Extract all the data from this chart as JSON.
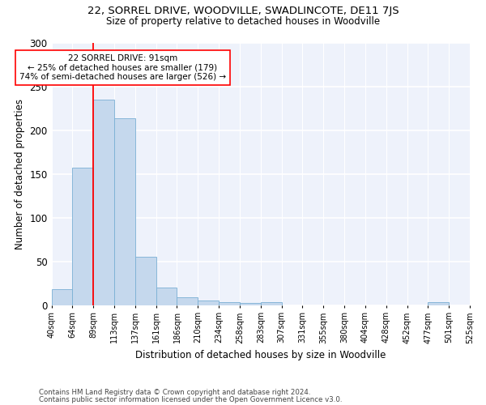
{
  "title1": "22, SORREL DRIVE, WOODVILLE, SWADLINCOTE, DE11 7JS",
  "title2": "Size of property relative to detached houses in Woodville",
  "xlabel": "Distribution of detached houses by size in Woodville",
  "ylabel": "Number of detached properties",
  "annotation_line1": "22 SORREL DRIVE: 91sqm",
  "annotation_line2": "← 25% of detached houses are smaller (179)",
  "annotation_line3": "74% of semi-detached houses are larger (526) →",
  "footer1": "Contains HM Land Registry data © Crown copyright and database right 2024.",
  "footer2": "Contains public sector information licensed under the Open Government Licence v3.0.",
  "bar_color": "#c5d8ed",
  "bar_edgecolor": "#7aafd4",
  "bar_values": [
    18,
    157,
    235,
    213,
    55,
    20,
    9,
    5,
    3,
    2,
    3,
    0,
    0,
    0,
    0,
    0,
    0,
    0,
    3,
    0
  ],
  "bin_labels": [
    "40sqm",
    "64sqm",
    "89sqm",
    "113sqm",
    "137sqm",
    "161sqm",
    "186sqm",
    "210sqm",
    "234sqm",
    "258sqm",
    "283sqm",
    "307sqm",
    "331sqm",
    "355sqm",
    "380sqm",
    "404sqm",
    "428sqm",
    "452sqm",
    "477sqm",
    "501sqm",
    "525sqm"
  ],
  "ylim": [
    0,
    300
  ],
  "yticks": [
    0,
    50,
    100,
    150,
    200,
    250,
    300
  ],
  "vline_x": 2,
  "bg_color": "#eef2fb"
}
